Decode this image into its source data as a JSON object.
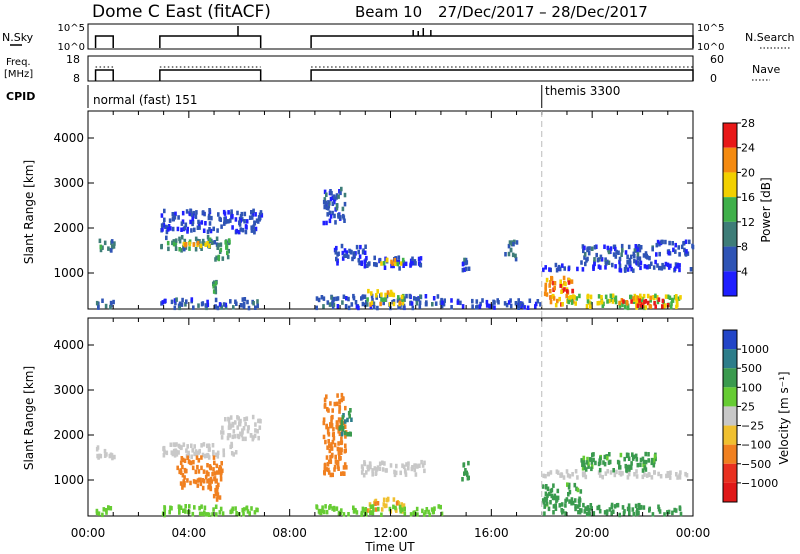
{
  "header": {
    "title": "Dome C East (fitACF)",
    "beam": "Beam 10",
    "dates": "27/Dec/2017 – 28/Dec/2017"
  },
  "top_panels": {
    "nsky_label": "N.Sky",
    "nsky_ticks": [
      "10^5",
      "10^0"
    ],
    "nsearch_label": "N.Search",
    "nsearch_ticks": [
      "10^5",
      "10^0"
    ],
    "freq_label": "Freq.",
    "freq_unit": "[MHz]",
    "freq_ticks": [
      "18",
      "8"
    ],
    "nave_label": "Nave",
    "nave_ticks": [
      "60",
      "0"
    ],
    "cpid_label": "CPID",
    "cpid_normal": "normal (fast) 151",
    "cpid_themis": "themis 3300",
    "on_intervals_hours": [
      [
        0.3,
        1.0
      ],
      [
        2.85,
        6.85
      ],
      [
        8.85,
        24.0
      ]
    ],
    "themis_start_hour": 18.0
  },
  "chart_data": [
    {
      "type": "heatmap",
      "name": "power",
      "ylabel": "Slant Range [km]",
      "xlabel": "Time UT",
      "ylim": [
        200,
        4600
      ],
      "yticks": [
        "1000",
        "2000",
        "3000",
        "4000"
      ],
      "xticks": [
        "00:00",
        "04:00",
        "08:00",
        "12:00",
        "16:00",
        "20:00",
        "00:00"
      ],
      "colorbar": {
        "label": "Power [dB]",
        "ticks": [
          "4",
          "8",
          "12",
          "16",
          "20",
          "24",
          "28"
        ],
        "colors": [
          "#1f1fff",
          "#2f54b5",
          "#3e7d78",
          "#3fb04a",
          "#f2d000",
          "#f48a10",
          "#e81818"
        ]
      },
      "patches": [
        {
          "t0": 0.3,
          "t1": 1.0,
          "r0": 1450,
          "r1": 1750,
          "v": 12
        },
        {
          "t0": 2.85,
          "t1": 5.2,
          "r0": 1500,
          "r1": 1800,
          "v": 12
        },
        {
          "t0": 3.2,
          "t1": 4.8,
          "r0": 1600,
          "r1": 1700,
          "v": 22
        },
        {
          "t0": 2.85,
          "t1": 6.85,
          "r0": 1900,
          "r1": 2400,
          "v": 7
        },
        {
          "t0": 5.0,
          "t1": 5.6,
          "r0": 1300,
          "r1": 1800,
          "v": 13
        },
        {
          "t0": 9.3,
          "t1": 10.2,
          "r0": 2100,
          "r1": 2900,
          "v": 8
        },
        {
          "t0": 9.7,
          "t1": 11.0,
          "r0": 1200,
          "r1": 1600,
          "v": 7
        },
        {
          "t0": 10.8,
          "t1": 13.3,
          "r0": 1100,
          "r1": 1350,
          "v": 6
        },
        {
          "t0": 11.5,
          "t1": 12.6,
          "r0": 1150,
          "r1": 1300,
          "v": 20
        },
        {
          "t0": 0.3,
          "t1": 1.0,
          "r0": 220,
          "r1": 400,
          "v": 9
        },
        {
          "t0": 2.85,
          "t1": 6.8,
          "r0": 220,
          "r1": 420,
          "v": 8
        },
        {
          "t0": 4.9,
          "t1": 5.2,
          "r0": 550,
          "r1": 800,
          "v": 14
        },
        {
          "t0": 9.0,
          "t1": 14.0,
          "r0": 220,
          "r1": 500,
          "v": 8
        },
        {
          "t0": 11.0,
          "t1": 12.5,
          "r0": 300,
          "r1": 600,
          "v": 20
        },
        {
          "t0": 14.8,
          "t1": 15.1,
          "r0": 1000,
          "r1": 1400,
          "v": 8
        },
        {
          "t0": 16.5,
          "t1": 17.0,
          "r0": 1300,
          "r1": 1700,
          "v": 10
        },
        {
          "t0": 18.0,
          "t1": 24.0,
          "r0": 1050,
          "r1": 1200,
          "v": 6
        },
        {
          "t0": 19.5,
          "t1": 22.5,
          "r0": 1200,
          "r1": 1600,
          "v": 8
        },
        {
          "t0": 22.5,
          "t1": 24.0,
          "r0": 1400,
          "r1": 1700,
          "v": 7
        },
        {
          "t0": 18.0,
          "t1": 19.2,
          "r0": 300,
          "r1": 900,
          "v": 24
        },
        {
          "t0": 18.5,
          "t1": 23.5,
          "r0": 220,
          "r1": 500,
          "v": 18
        },
        {
          "t0": 21.0,
          "t1": 23.0,
          "r0": 250,
          "r1": 450,
          "v": 27
        },
        {
          "t0": 14.0,
          "t1": 18.0,
          "r0": 220,
          "r1": 400,
          "v": 7
        }
      ]
    },
    {
      "type": "heatmap",
      "name": "velocity",
      "ylabel": "Slant Range [km]",
      "xlabel": "Time UT",
      "ylim": [
        200,
        4600
      ],
      "yticks": [
        "1000",
        "2000",
        "3000",
        "4000"
      ],
      "xticks": [
        "00:00",
        "04:00",
        "08:00",
        "12:00",
        "16:00",
        "20:00",
        "00:00"
      ],
      "colorbar": {
        "label": "Velocity [m s⁻¹]",
        "ticks": [
          "1000",
          "500",
          "100",
          "25",
          "−25",
          "−100",
          "−500",
          "−1000"
        ],
        "colors": [
          "#2346c8",
          "#2d7d8a",
          "#3a9a4e",
          "#66cc33",
          "#c8c8c8",
          "#f0c030",
          "#f08020",
          "#e83020",
          "#e01818"
        ]
      },
      "patches": [
        {
          "t0": 0.3,
          "t1": 1.0,
          "r0": 1450,
          "r1": 1750,
          "v": 0
        },
        {
          "t0": 2.85,
          "t1": 6.0,
          "r0": 1500,
          "r1": 1800,
          "v": 0
        },
        {
          "t0": 3.5,
          "t1": 5.3,
          "r0": 800,
          "r1": 1500,
          "v": -300
        },
        {
          "t0": 5.2,
          "t1": 6.8,
          "r0": 1900,
          "r1": 2400,
          "v": 0
        },
        {
          "t0": 9.3,
          "t1": 10.2,
          "r0": 1100,
          "r1": 2900,
          "v": -300
        },
        {
          "t0": 9.9,
          "t1": 10.4,
          "r0": 2000,
          "r1": 2600,
          "v": 400
        },
        {
          "t0": 10.8,
          "t1": 13.3,
          "r0": 1100,
          "r1": 1400,
          "v": 0
        },
        {
          "t0": 0.3,
          "t1": 1.0,
          "r0": 220,
          "r1": 400,
          "v": 60
        },
        {
          "t0": 2.85,
          "t1": 6.8,
          "r0": 220,
          "r1": 420,
          "v": 60
        },
        {
          "t0": 4.9,
          "t1": 5.2,
          "r0": 550,
          "r1": 800,
          "v": -300
        },
        {
          "t0": 11.0,
          "t1": 12.5,
          "r0": 300,
          "r1": 600,
          "v": -80
        },
        {
          "t0": 9.0,
          "t1": 14.0,
          "r0": 220,
          "r1": 420,
          "v": 60
        },
        {
          "t0": 14.8,
          "t1": 15.1,
          "r0": 1000,
          "r1": 1400,
          "v": 200
        },
        {
          "t0": 18.0,
          "t1": 24.0,
          "r0": 1050,
          "r1": 1200,
          "v": 0
        },
        {
          "t0": 19.5,
          "t1": 22.5,
          "r0": 1200,
          "r1": 1600,
          "v": 150
        },
        {
          "t0": 18.0,
          "t1": 19.5,
          "r0": 250,
          "r1": 900,
          "v": 150
        },
        {
          "t0": 19.5,
          "t1": 23.5,
          "r0": 220,
          "r1": 450,
          "v": 300
        }
      ]
    }
  ]
}
